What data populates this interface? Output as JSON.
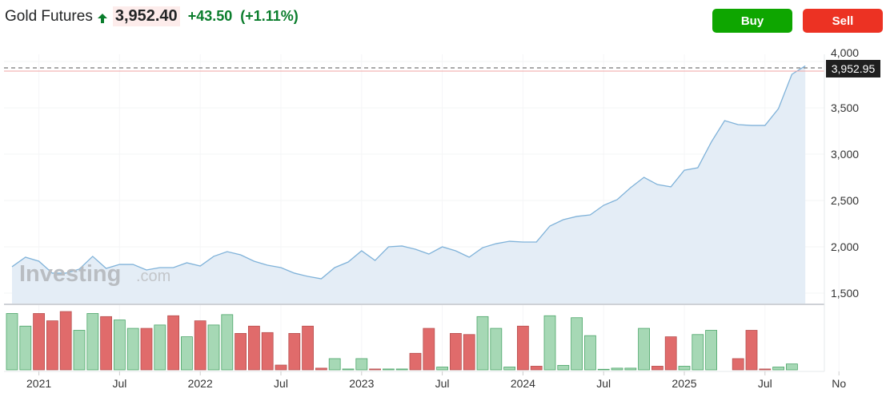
{
  "header": {
    "title": "Gold Futures",
    "price": "3,952.40",
    "change": "+43.50",
    "change_pct": "(+1.11%)",
    "direction_icon": "arrow-up-icon"
  },
  "buttons": {
    "buy": "Buy",
    "sell": "Sell"
  },
  "watermark": {
    "brand": "Investing",
    ".com": ".com"
  },
  "colors": {
    "up": "#0ea600",
    "down": "#ec3223",
    "line": "#7fb2d9",
    "area": "#e4edf6",
    "vol_up": "#a6d8b5",
    "vol_down": "#e06b6b"
  },
  "chart_data": {
    "type": "area",
    "interval": "monthly",
    "first_period": "Nov 2020",
    "last_price_label": "3,952.95",
    "y_ticks": [
      "1,500",
      "2,000",
      "2,500",
      "3,000",
      "3,500",
      "4,000"
    ],
    "ylim": [
      1500,
      4000
    ],
    "x_ticks": [
      "2021",
      "Jul",
      "2022",
      "Jul",
      "2023",
      "Jul",
      "2024",
      "Jul",
      "2025",
      "Jul",
      "No"
    ],
    "grid": true,
    "prices": [
      1785,
      1888,
      1845,
      1716,
      1716,
      1759,
      1897,
      1767,
      1810,
      1810,
      1750,
      1776,
      1776,
      1828,
      1793,
      1897,
      1948,
      1914,
      1845,
      1802,
      1776,
      1716,
      1681,
      1655,
      1776,
      1836,
      1957,
      1853,
      2000,
      2009,
      1974,
      1922,
      2000,
      1957,
      1888,
      1991,
      2034,
      2060,
      2052,
      2052,
      2224,
      2293,
      2328,
      2345,
      2448,
      2509,
      2638,
      2750,
      2672,
      2647,
      2827,
      2853,
      3129,
      3362,
      3319,
      3310,
      3310,
      3491,
      3862,
      3952.95
    ],
    "volume": [
      201,
      156,
      201,
      175,
      208,
      141,
      201,
      190,
      178,
      148,
      148,
      160,
      193,
      118,
      175,
      160,
      197,
      130,
      156,
      133,
      17,
      130,
      156,
      6,
      40,
      3,
      40,
      3,
      3,
      3,
      59,
      148,
      10,
      130,
      126,
      190,
      148,
      10,
      156,
      13,
      193,
      16,
      186,
      122,
      2,
      6,
      6,
      148,
      13,
      118,
      13,
      126,
      141,
      0,
      40,
      141,
      3,
      10,
      21,
      0
    ],
    "volume_dir": [
      "u",
      "u",
      "d",
      "d",
      "d",
      "u",
      "u",
      "d",
      "u",
      "u",
      "d",
      "u",
      "d",
      "u",
      "d",
      "u",
      "u",
      "d",
      "d",
      "d",
      "d",
      "d",
      "d",
      "d",
      "u",
      "u",
      "u",
      "d",
      "u",
      "u",
      "d",
      "d",
      "u",
      "d",
      "d",
      "u",
      "u",
      "u",
      "d",
      "d",
      "u",
      "u",
      "u",
      "u",
      "u",
      "u",
      "u",
      "u",
      "d",
      "d",
      "u",
      "u",
      "u",
      "u",
      "d",
      "d",
      "d",
      "u",
      "u",
      "u"
    ]
  }
}
